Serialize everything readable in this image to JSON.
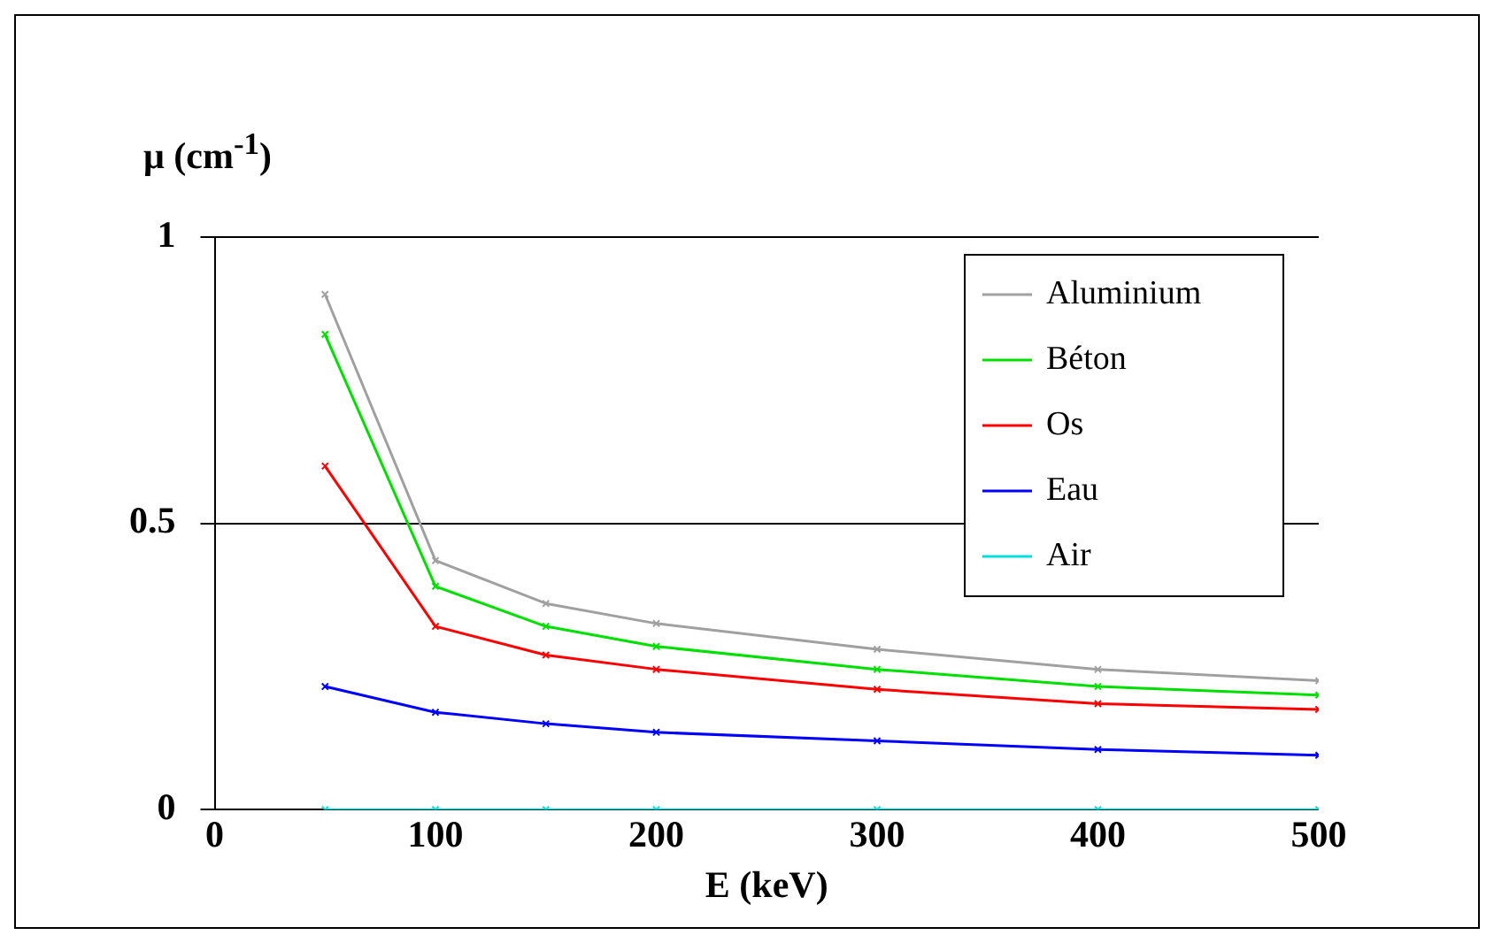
{
  "chart_data": {
    "type": "line",
    "xlabel": "E (keV)",
    "ylabel": "μ (cm$^{-1}$)",
    "x": [
      50,
      100,
      150,
      200,
      300,
      400,
      500
    ],
    "xlim": [
      0,
      500
    ],
    "xticks": [
      0,
      100,
      200,
      300,
      400,
      500
    ],
    "ylim": [
      0,
      1
    ],
    "yticks": [
      0,
      0.5,
      1
    ],
    "grid": "y",
    "legend": "top right",
    "marker": "cross",
    "line_style": "solid",
    "series": [
      {
        "name": "Aluminium",
        "color": "#a0a0a0",
        "values": [
          0.9,
          0.435,
          0.36,
          0.325,
          0.28,
          0.245,
          0.225
        ]
      },
      {
        "name": "Béton",
        "color": "#00e000",
        "values": [
          0.83,
          0.39,
          0.32,
          0.285,
          0.245,
          0.215,
          0.2
        ]
      },
      {
        "name": "Os",
        "color": "#ff0000",
        "values": [
          0.6,
          0.32,
          0.27,
          0.245,
          0.21,
          0.185,
          0.175
        ]
      },
      {
        "name": "Eau",
        "color": "#0000ff",
        "values": [
          0.215,
          0.17,
          0.15,
          0.135,
          0.12,
          0.105,
          0.095
        ]
      },
      {
        "name": "Air",
        "color": "#00e0e0",
        "values": [
          0,
          0,
          0,
          0,
          0,
          0,
          0
        ]
      }
    ]
  }
}
